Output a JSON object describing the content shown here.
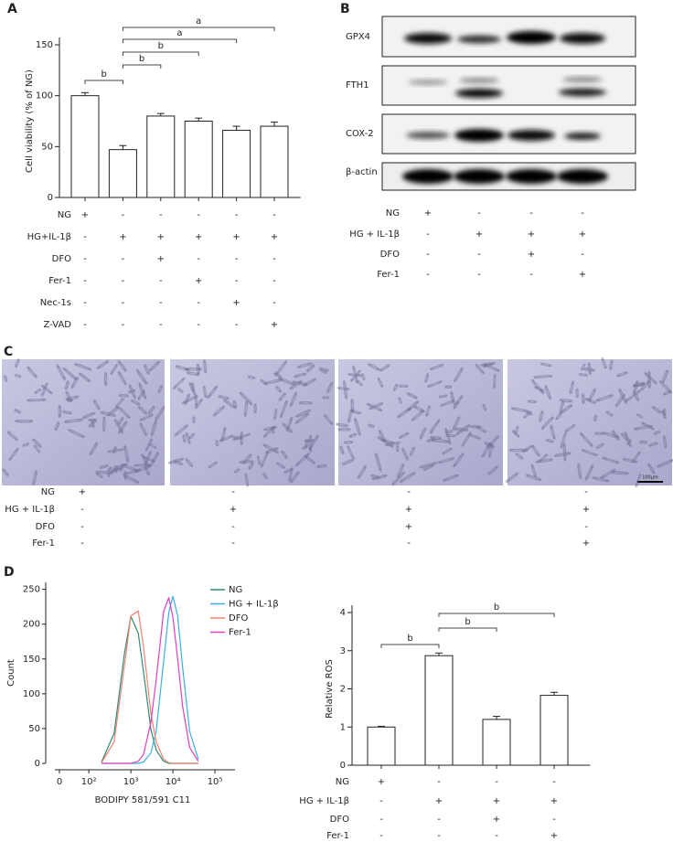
{
  "chart_data": [
    {
      "type": "bar",
      "panel": "A",
      "ylabel": "Cell viability (% of NG)",
      "values": [
        100,
        47,
        80,
        75,
        66,
        70
      ],
      "errors": [
        3,
        4,
        2.5,
        3,
        4,
        4
      ],
      "color": "#ffffff",
      "ylim": [
        0,
        150
      ],
      "yticks": [
        0,
        50,
        100,
        150
      ],
      "conditions": [
        {
          "name": "NG",
          "signs": [
            "+",
            "-",
            "-",
            "-",
            "-",
            "-"
          ]
        },
        {
          "name": "HG+IL-1β",
          "signs": [
            "-",
            "+",
            "+",
            "+",
            "+",
            "+"
          ]
        },
        {
          "name": "DFO",
          "signs": [
            "-",
            "-",
            "+",
            "-",
            "-",
            "-"
          ]
        },
        {
          "name": "Fer-1",
          "signs": [
            "-",
            "-",
            "-",
            "+",
            "-",
            "-"
          ]
        },
        {
          "name": "Nec-1s",
          "signs": [
            "-",
            "-",
            "-",
            "-",
            "+",
            "-"
          ]
        },
        {
          "name": "Z-VAD",
          "signs": [
            "-",
            "-",
            "-",
            "-",
            "-",
            "+"
          ]
        }
      ],
      "brackets": [
        {
          "from": 0,
          "to": 1,
          "label": "b"
        },
        {
          "from": 1,
          "to": 2,
          "label": "b"
        },
        {
          "from": 1,
          "to": 3,
          "label": "b"
        },
        {
          "from": 1,
          "to": 4,
          "label": "a"
        },
        {
          "from": 1,
          "to": 5,
          "label": "a"
        }
      ]
    },
    {
      "type": "line",
      "panel": "D",
      "xlabel": "BODIPY 581/591 C11",
      "ylabel": "Count",
      "xscale": "log",
      "x": [
        200,
        400,
        700,
        1000,
        1500,
        2000,
        3000,
        4000,
        6000,
        8000,
        10000,
        13000,
        17000,
        25000,
        40000
      ],
      "series": [
        {
          "name": "NG",
          "color": "#2e8b77",
          "values": [
            2,
            43,
            157,
            211,
            187,
            131,
            49,
            19,
            3,
            0,
            0,
            0,
            0,
            0,
            0
          ]
        },
        {
          "name": "HG + IL-1β",
          "color": "#3ab0e0",
          "values": [
            0,
            0,
            0,
            0,
            0,
            2,
            15,
            46,
            146,
            217,
            240,
            212,
            138,
            46,
            6
          ]
        },
        {
          "name": "DFO",
          "color": "#f08070",
          "values": [
            1,
            31,
            140,
            212,
            219,
            167,
            72,
            31,
            6,
            1,
            0,
            0,
            0,
            0,
            0
          ]
        },
        {
          "name": "Fer-1",
          "color": "#e040c0",
          "values": [
            0,
            0,
            0,
            0,
            3,
            13,
            59,
            120,
            218,
            238,
            210,
            150,
            82,
            23,
            3
          ]
        }
      ],
      "xlim": [
        20,
        300000
      ],
      "xticks": [
        0,
        {
          "value": 100,
          "label": "10²"
        },
        {
          "value": 1000,
          "label": "10³"
        },
        {
          "value": 10000,
          "label": "10⁴"
        },
        {
          "value": 100000,
          "label": "10⁵"
        }
      ],
      "ylim": [
        0,
        260
      ],
      "yticks": [
        0,
        50,
        100,
        150,
        200,
        250
      ],
      "legend": "upper right"
    },
    {
      "type": "bar",
      "ylabel": "Relative ROS",
      "values": [
        1.0,
        2.87,
        1.2,
        1.83
      ],
      "errors": [
        0.02,
        0.07,
        0.08,
        0.08
      ],
      "color": "#ffffff",
      "ylim": [
        0,
        4
      ],
      "yticks": [
        0,
        1,
        2,
        3,
        4
      ],
      "conditions": [
        {
          "name": "NG",
          "signs": [
            "+",
            "-",
            "-",
            "-"
          ]
        },
        {
          "name": "HG + IL-1β",
          "signs": [
            "-",
            "+",
            "+",
            "+"
          ]
        },
        {
          "name": "DFO",
          "signs": [
            "-",
            "-",
            "+",
            "-"
          ]
        },
        {
          "name": "Fer-1",
          "signs": [
            "-",
            "-",
            "-",
            "+"
          ]
        }
      ],
      "brackets": [
        {
          "from": 0,
          "to": 1,
          "label": "b"
        },
        {
          "from": 1,
          "to": 2,
          "label": "b"
        },
        {
          "from": 1,
          "to": 3,
          "label": "b"
        }
      ]
    }
  ],
  "blot": {
    "panel": "B",
    "rows": [
      "GPX4",
      "FTH1",
      "COX-2",
      "β-actin"
    ],
    "conditions": [
      {
        "name": "NG",
        "signs": [
          "+",
          "-",
          "-",
          "-"
        ]
      },
      {
        "name": "HG + IL-1β",
        "signs": [
          "-",
          "+",
          "+",
          "+"
        ]
      },
      {
        "name": "DFO",
        "signs": [
          "-",
          "-",
          "+",
          "-"
        ]
      },
      {
        "name": "Fer-1",
        "signs": [
          "-",
          "-",
          "-",
          "+"
        ]
      }
    ]
  },
  "micrographs": {
    "panel": "C",
    "scale_bar": "100μm",
    "conditions": [
      {
        "name": "NG",
        "signs": [
          "+",
          "-",
          "-",
          "-"
        ]
      },
      {
        "name": "HG + IL-1β",
        "signs": [
          "-",
          "+",
          "+",
          "+"
        ]
      },
      {
        "name": "DFO",
        "signs": [
          "-",
          "-",
          "+",
          "-"
        ]
      },
      {
        "name": "Fer-1",
        "signs": [
          "-",
          "-",
          "-",
          "+"
        ]
      }
    ]
  }
}
